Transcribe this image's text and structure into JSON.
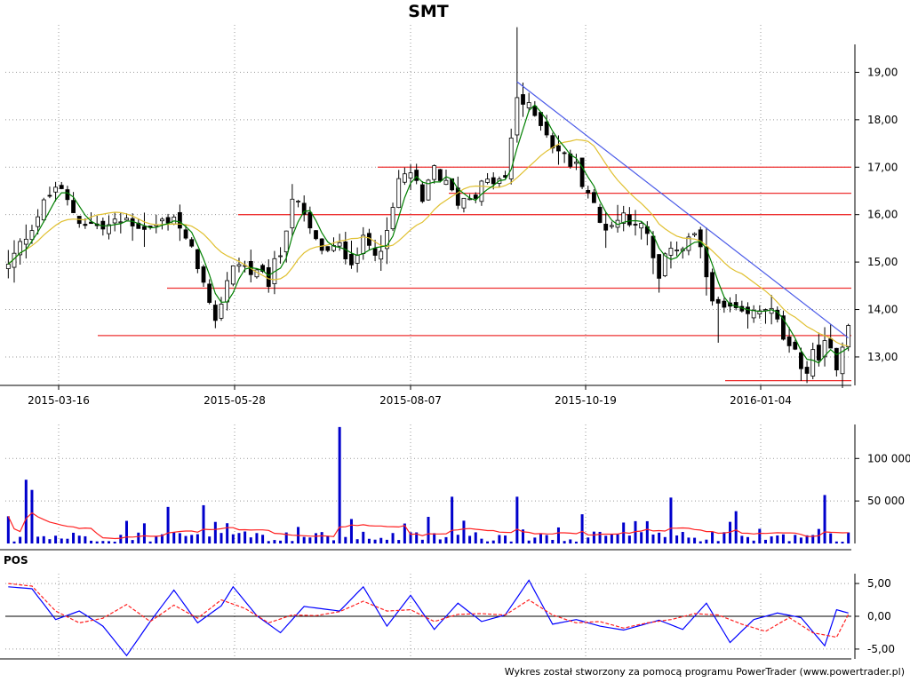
{
  "chart_data": [
    {
      "type": "candlestick",
      "title": "SMT",
      "x_ticks": [
        "2015-03-16",
        "2015-05-28",
        "2015-08-07",
        "2015-10-19",
        "2016-01-04"
      ],
      "y_ticks": [
        "13,00",
        "14,00",
        "15,00",
        "16,00",
        "17,00",
        "18,00",
        "19,00"
      ],
      "ylim": [
        12.4,
        20.0
      ],
      "grid": true,
      "price_path": [
        [
          0,
          14.9
        ],
        [
          4,
          15.8
        ],
        [
          8,
          16.6
        ],
        [
          12,
          15.9
        ],
        [
          16,
          15.7
        ],
        [
          20,
          15.9
        ],
        [
          24,
          15.7
        ],
        [
          28,
          16.0
        ],
        [
          30,
          15.4
        ],
        [
          32,
          15.0
        ],
        [
          34,
          14.0
        ],
        [
          35,
          13.6
        ],
        [
          36,
          14.2
        ],
        [
          38,
          15.0
        ],
        [
          40,
          14.9
        ],
        [
          42,
          14.7
        ],
        [
          44,
          14.6
        ],
        [
          46,
          15.2
        ],
        [
          48,
          16.4
        ],
        [
          50,
          15.9
        ],
        [
          52,
          15.4
        ],
        [
          54,
          15.2
        ],
        [
          56,
          15.3
        ],
        [
          58,
          15.1
        ],
        [
          60,
          15.4
        ],
        [
          62,
          15.3
        ],
        [
          64,
          15.5
        ],
        [
          66,
          16.7
        ],
        [
          68,
          16.9
        ],
        [
          70,
          16.2
        ],
        [
          72,
          17.0
        ],
        [
          74,
          16.6
        ],
        [
          76,
          16.3
        ],
        [
          78,
          16.4
        ],
        [
          80,
          16.6
        ],
        [
          82,
          16.7
        ],
        [
          84,
          16.7
        ],
        [
          86,
          18.5
        ],
        [
          88,
          18.2
        ],
        [
          90,
          18.0
        ],
        [
          92,
          17.5
        ],
        [
          94,
          17.2
        ],
        [
          96,
          17.0
        ],
        [
          98,
          16.5
        ],
        [
          100,
          15.8
        ],
        [
          102,
          15.8
        ],
        [
          104,
          16.0
        ],
        [
          106,
          15.9
        ],
        [
          108,
          15.5
        ],
        [
          110,
          14.6
        ],
        [
          112,
          15.4
        ],
        [
          114,
          15.3
        ],
        [
          116,
          15.6
        ],
        [
          118,
          14.7
        ],
        [
          120,
          14.0
        ],
        [
          122,
          14.0
        ],
        [
          124,
          13.8
        ],
        [
          126,
          13.9
        ],
        [
          128,
          14.1
        ],
        [
          130,
          13.7
        ],
        [
          132,
          13.1
        ],
        [
          134,
          12.9
        ],
        [
          135,
          12.7
        ],
        [
          136,
          13.0
        ],
        [
          138,
          13.2
        ],
        [
          140,
          12.9
        ],
        [
          141,
          13.3
        ],
        [
          142,
          13.8
        ]
      ],
      "series": [
        {
          "name": "",
          "color": "#008000",
          "kind": "moving-average-short"
        },
        {
          "name": "",
          "color": "#e0c030",
          "kind": "moving-average-long"
        }
      ],
      "support_resistance_levels": [
        17.0,
        16.45,
        16.0,
        14.45,
        13.45,
        12.5
      ],
      "trendline": {
        "from": [
          86,
          18.8
        ],
        "to": [
          142,
          13.4
        ],
        "color": "#4a5ae8"
      }
    },
    {
      "type": "bar",
      "name": "volume",
      "y_ticks": [
        "50 000",
        "100 000"
      ],
      "ylim": [
        0,
        140000
      ],
      "grid": true,
      "spikes": [
        [
          0,
          32000
        ],
        [
          3,
          75000
        ],
        [
          4,
          63000
        ],
        [
          27,
          43000
        ],
        [
          33,
          45000
        ],
        [
          56,
          137000
        ],
        [
          75,
          55000
        ],
        [
          86,
          55000
        ],
        [
          112,
          54000
        ],
        [
          123,
          38000
        ],
        [
          138,
          57000
        ]
      ],
      "series": [
        {
          "name": "",
          "color": "#0000cc",
          "kind": "volume-bars"
        },
        {
          "name": "",
          "color": "#ff2020",
          "kind": "volume-average"
        }
      ]
    },
    {
      "type": "line",
      "name": "oscillator",
      "label": "POS",
      "y_ticks": [
        "-5,00",
        "0,00",
        "5,00"
      ],
      "ylim": [
        -6.5,
        6.5
      ],
      "grid": true,
      "series": [
        {
          "name": "",
          "color": "#0000ff",
          "kind": "solid",
          "points": [
            [
              0,
              4.5
            ],
            [
              4,
              4.2
            ],
            [
              8,
              -0.5
            ],
            [
              12,
              0.8
            ],
            [
              16,
              -1.5
            ],
            [
              20,
              -6.0
            ],
            [
              24,
              -0.8
            ],
            [
              28,
              4.0
            ],
            [
              32,
              -1.0
            ],
            [
              36,
              1.6
            ],
            [
              38,
              4.5
            ],
            [
              42,
              0.1
            ],
            [
              46,
              -2.5
            ],
            [
              50,
              1.5
            ],
            [
              56,
              0.8
            ],
            [
              60,
              4.5
            ],
            [
              64,
              -1.5
            ],
            [
              68,
              3.2
            ],
            [
              72,
              -2.0
            ],
            [
              76,
              2.0
            ],
            [
              80,
              -0.8
            ],
            [
              84,
              0.2
            ],
            [
              88,
              5.5
            ],
            [
              92,
              -1.2
            ],
            [
              96,
              -0.5
            ],
            [
              100,
              -1.5
            ],
            [
              104,
              -2.1
            ],
            [
              110,
              -0.6
            ],
            [
              114,
              -2.0
            ],
            [
              118,
              2.0
            ],
            [
              122,
              -4.0
            ],
            [
              126,
              -0.5
            ],
            [
              130,
              0.5
            ],
            [
              134,
              -0.2
            ],
            [
              138,
              -4.5
            ],
            [
              140,
              1.0
            ],
            [
              142,
              0.5
            ]
          ]
        },
        {
          "name": "",
          "color": "#ff2020",
          "kind": "dashed",
          "points": [
            [
              0,
              5.0
            ],
            [
              4,
              4.6
            ],
            [
              8,
              0.8
            ],
            [
              12,
              -1.0
            ],
            [
              16,
              -0.3
            ],
            [
              20,
              1.8
            ],
            [
              24,
              -0.8
            ],
            [
              28,
              1.7
            ],
            [
              32,
              -0.3
            ],
            [
              36,
              2.5
            ],
            [
              40,
              1.2
            ],
            [
              44,
              -1.0
            ],
            [
              48,
              0.2
            ],
            [
              52,
              0.1
            ],
            [
              56,
              0.7
            ],
            [
              60,
              2.3
            ],
            [
              64,
              0.8
            ],
            [
              68,
              1.0
            ],
            [
              72,
              -0.8
            ],
            [
              76,
              0.3
            ],
            [
              80,
              0.4
            ],
            [
              84,
              0.2
            ],
            [
              88,
              2.5
            ],
            [
              92,
              0.2
            ],
            [
              96,
              -1.0
            ],
            [
              100,
              -0.8
            ],
            [
              104,
              -1.8
            ],
            [
              108,
              -1.0
            ],
            [
              112,
              -0.5
            ],
            [
              116,
              0.4
            ],
            [
              120,
              0.2
            ],
            [
              124,
              -1.2
            ],
            [
              128,
              -2.3
            ],
            [
              132,
              -0.2
            ],
            [
              136,
              -2.5
            ],
            [
              140,
              -3.2
            ],
            [
              142,
              0.3
            ]
          ]
        }
      ]
    }
  ],
  "footer": "Wykres został stworzony za pomocą programu PowerTrader (www.powertrader.pl)"
}
